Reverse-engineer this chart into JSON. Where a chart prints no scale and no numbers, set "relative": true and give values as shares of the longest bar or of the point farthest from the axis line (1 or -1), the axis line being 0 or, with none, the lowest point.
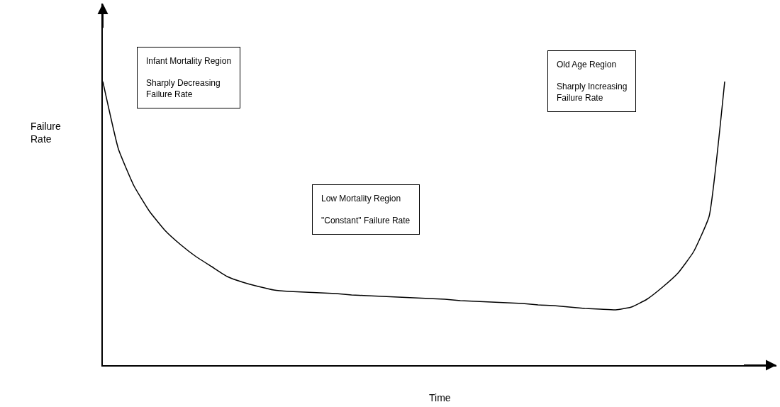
{
  "chart_data": {
    "type": "line",
    "relative": true,
    "xlabel": "Time",
    "ylabel": "Failure\nRate",
    "color": "#000000",
    "categories": [
      null,
      null,
      null,
      null,
      null,
      null,
      null,
      null,
      null,
      null,
      null,
      null,
      null,
      null,
      null,
      null,
      null,
      null,
      null,
      null,
      null,
      null,
      null,
      null,
      null,
      null,
      null,
      null,
      null,
      null,
      null,
      null,
      null,
      null,
      null,
      null,
      null,
      null,
      null,
      null,
      null
    ],
    "values": [
      1,
      0.7625,
      0.6325,
      0.5425,
      0.475,
      0.425,
      0.3825,
      0.3475,
      0.3125,
      0.2925,
      0.2775,
      0.265,
      0.26,
      0.2575,
      0.255,
      0.2525,
      0.2475,
      0.245,
      0.2425,
      0.24,
      0.2375,
      0.235,
      0.2325,
      0.2275,
      0.225,
      0.2225,
      0.22,
      0.2175,
      0.2125,
      0.21,
      0.205,
      0.2,
      0.1975,
      0.195,
      0.205,
      0.2325,
      0.275,
      0.325,
      0.4,
      0.525,
      1
    ],
    "annotations": [
      "Infant Mortality Region\n\nSharply Decreasing\nFailure Rate",
      "Low Mortality Region\n\n\"Constant\" Failure Rate",
      "Old Age Region\n\nSharply Increasing\nFailure Rate"
    ],
    "marker": "none",
    "line_style": "solid"
  }
}
